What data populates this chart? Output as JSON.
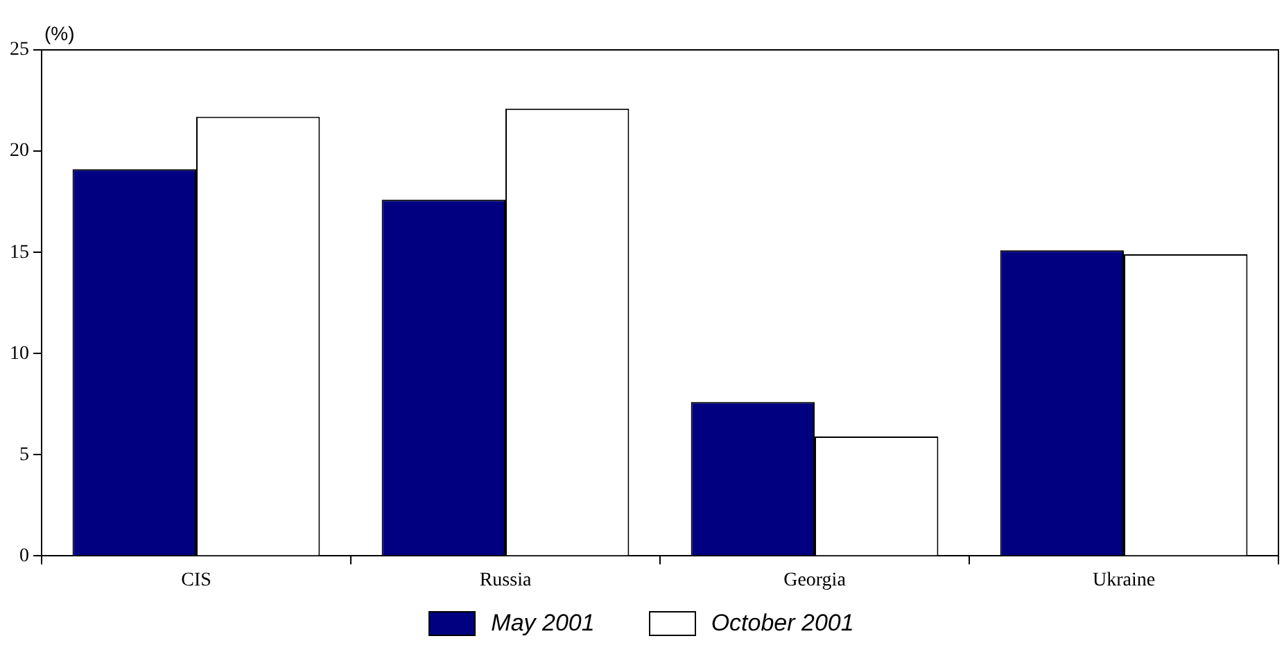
{
  "chart_data": {
    "type": "bar",
    "ylabel": "(%)",
    "categories": [
      "CIS",
      "Russia",
      "Georgia",
      "Ukraine"
    ],
    "series": [
      {
        "name": "May 2001",
        "color": "#000080",
        "values": [
          19.1,
          17.6,
          7.6,
          15.1
        ]
      },
      {
        "name": "October 2001",
        "color": "#ffffff",
        "values": [
          21.7,
          22.1,
          5.9,
          14.9
        ]
      }
    ],
    "ylim": [
      0,
      25
    ],
    "yticks": [
      0,
      5,
      10,
      15,
      20,
      25
    ],
    "grid": false,
    "legend": "bottom"
  }
}
